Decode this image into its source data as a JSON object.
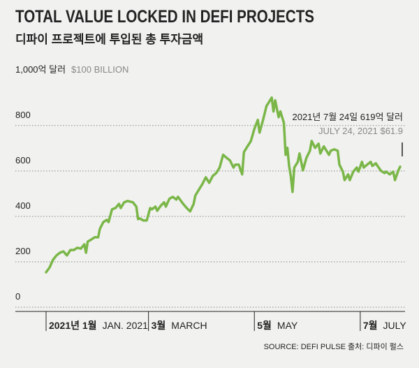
{
  "chart_data": {
    "type": "line",
    "title": "TOTAL VALUE LOCKED IN DEFI PROJECTS",
    "subtitle": "디파이 프로젝트에 투입된 총 투자금액",
    "y_unit_label": "1,000억 달러",
    "y_unit_label_en": "$100 BILLION",
    "annotation": "2021년 7월 24일 619억 달러",
    "annotation_en": "JULY 24, 2021  $61.9",
    "source": "SOURCE: DEFI PULSE  출처: 디파이 펄스",
    "color": "#7ab648",
    "grid": true,
    "ylim": [
      0,
      950
    ],
    "yticks": [
      0,
      200,
      400,
      600,
      800
    ],
    "xlim": [
      "2020-12-31",
      "2021-07-26"
    ],
    "xticks": [
      {
        "value": "2021-01-01",
        "label": "2021년 1월"
      },
      {
        "value": "2021-03-01",
        "label": "3월"
      },
      {
        "value": "2021-05-01",
        "label": "5월"
      },
      {
        "value": "2021-07-01",
        "label": "7월"
      }
    ],
    "xtick_sublabels": [
      "JAN. 2021",
      "MARCH",
      "MAY",
      "JULY"
    ],
    "x": [
      "2021-01-01",
      "2021-01-03",
      "2021-01-05",
      "2021-01-07",
      "2021-01-09",
      "2021-01-11",
      "2021-01-13",
      "2021-01-15",
      "2021-01-17",
      "2021-01-19",
      "2021-01-21",
      "2021-01-23",
      "2021-01-24",
      "2021-01-25",
      "2021-01-27",
      "2021-01-29",
      "2021-01-31",
      "2021-02-01",
      "2021-02-03",
      "2021-02-05",
      "2021-02-06",
      "2021-02-08",
      "2021-02-10",
      "2021-02-12",
      "2021-02-13",
      "2021-02-15",
      "2021-02-17",
      "2021-02-20",
      "2021-02-22",
      "2021-02-23",
      "2021-02-24",
      "2021-02-26",
      "2021-02-28",
      "2021-03-02",
      "2021-03-03",
      "2021-03-05",
      "2021-03-06",
      "2021-03-08",
      "2021-03-10",
      "2021-03-11",
      "2021-03-13",
      "2021-03-15",
      "2021-03-17",
      "2021-03-18",
      "2021-03-21",
      "2021-03-23",
      "2021-03-25",
      "2021-03-27",
      "2021-03-28",
      "2021-03-30",
      "2021-04-01",
      "2021-04-03",
      "2021-04-05",
      "2021-04-07",
      "2021-04-09",
      "2021-04-11",
      "2021-04-13",
      "2021-04-15",
      "2021-04-17",
      "2021-04-19",
      "2021-04-20",
      "2021-04-22",
      "2021-04-24",
      "2021-04-25",
      "2021-04-27",
      "2021-04-29",
      "2021-05-01",
      "2021-05-03",
      "2021-05-04",
      "2021-05-06",
      "2021-05-08",
      "2021-05-09",
      "2021-05-11",
      "2021-05-12",
      "2021-05-13",
      "2021-05-15",
      "2021-05-16",
      "2021-05-18",
      "2021-05-19",
      "2021-05-20",
      "2021-05-21",
      "2021-05-22",
      "2021-05-23",
      "2021-05-24",
      "2021-05-26",
      "2021-05-27",
      "2021-05-29",
      "2021-05-31",
      "2021-06-02",
      "2021-06-03",
      "2021-06-05",
      "2021-06-07",
      "2021-06-08",
      "2021-06-10",
      "2021-06-13",
      "2021-06-14",
      "2021-06-16",
      "2021-06-18",
      "2021-06-19",
      "2021-06-21",
      "2021-06-22",
      "2021-06-24",
      "2021-06-25",
      "2021-06-27",
      "2021-06-29",
      "2021-06-30",
      "2021-07-02",
      "2021-07-03",
      "2021-07-05",
      "2021-07-07",
      "2021-07-08",
      "2021-07-10",
      "2021-07-11",
      "2021-07-13",
      "2021-07-15",
      "2021-07-16",
      "2021-07-18",
      "2021-07-20",
      "2021-07-21",
      "2021-07-23",
      "2021-07-24"
    ],
    "values": [
      154,
      175,
      209,
      228,
      240,
      246,
      228,
      252,
      252,
      262,
      258,
      277,
      240,
      289,
      298,
      308,
      308,
      345,
      375,
      385,
      375,
      431,
      437,
      455,
      437,
      462,
      468,
      462,
      443,
      388,
      391,
      382,
      382,
      437,
      431,
      443,
      425,
      446,
      462,
      443,
      477,
      486,
      474,
      486,
      455,
      437,
      422,
      455,
      492,
      517,
      542,
      572,
      548,
      578,
      591,
      615,
      671,
      658,
      646,
      615,
      628,
      628,
      585,
      683,
      708,
      732,
      785,
      825,
      769,
      825,
      886,
      898,
      923,
      862,
      911,
      837,
      862,
      812,
      671,
      702,
      622,
      578,
      508,
      615,
      640,
      677,
      603,
      658,
      689,
      732,
      702,
      720,
      677,
      708,
      671,
      689,
      695,
      689,
      628,
      597,
      560,
      585,
      560,
      597,
      615,
      597,
      640,
      615,
      628,
      640,
      622,
      634,
      622,
      600,
      591,
      597,
      585,
      597,
      560,
      603,
      619
    ]
  }
}
